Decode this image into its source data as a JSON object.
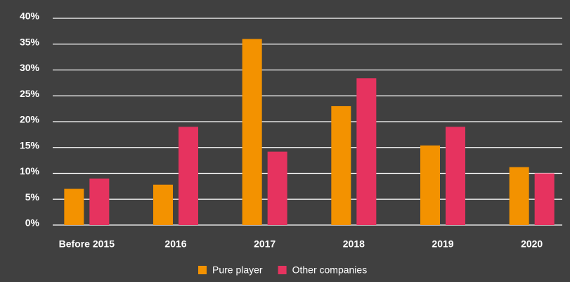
{
  "chart_data": {
    "type": "bar",
    "categories": [
      "Before 2015",
      "2016",
      "2017",
      "2018",
      "2019",
      "2020"
    ],
    "series": [
      {
        "name": "Pure player",
        "color": "#f39200",
        "values": [
          7,
          7.8,
          36,
          23,
          15.4,
          11.2
        ]
      },
      {
        "name": "Other companies",
        "color": "#e6335f",
        "values": [
          9,
          19,
          14.2,
          28.4,
          19,
          10
        ]
      }
    ],
    "ylim": [
      0,
      40
    ],
    "yticks": [
      {
        "value": 0,
        "label": "0%"
      },
      {
        "value": 5,
        "label": "5%"
      },
      {
        "value": 10,
        "label": "10%"
      },
      {
        "value": 15,
        "label": "15%"
      },
      {
        "value": 20,
        "label": "20%"
      },
      {
        "value": 25,
        "label": "25%"
      },
      {
        "value": 30,
        "label": "30%"
      },
      {
        "value": 35,
        "label": "35%"
      },
      {
        "value": 40,
        "label": "40%"
      }
    ],
    "grid": true,
    "legend": "bottom"
  }
}
